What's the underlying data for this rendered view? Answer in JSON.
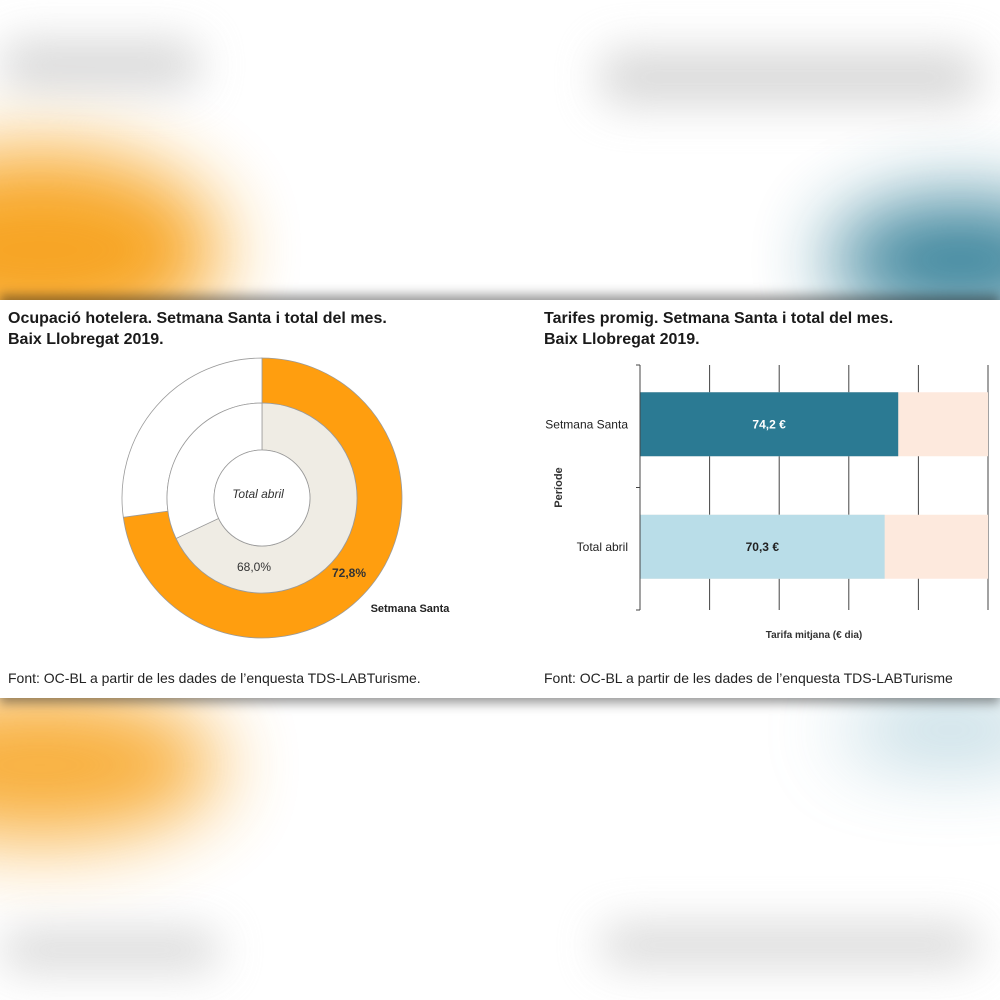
{
  "left_chart": {
    "title_line1": "Ocupació hotelera. Setmana Santa i total del mes.",
    "title_line2": "Baix Llobregat 2019.",
    "source": "Font: OC-BL a partir de les dades de l’enquesta TDS-LABTurisme."
  },
  "right_chart": {
    "title_line1": "Tarifes promig. Setmana Santa i total del mes.",
    "title_line2": "Baix Llobregat 2019.",
    "source": "Font: OC-BL a partir de les dades de l’enquesta TDS-LABTurisme"
  },
  "colors": {
    "orange": "#ff9e0f",
    "inner_fill": "#efece4",
    "teal": "#2b7a93",
    "light_blue": "#b9dde8",
    "peach": "#fde9dd"
  },
  "chart_data": [
    {
      "type": "pie",
      "variant": "nested-donut",
      "rings": [
        {
          "name": "Setmana Santa",
          "value": 72.8,
          "label": "72,8%",
          "position": "outer"
        },
        {
          "name": "Total abril",
          "value": 68.0,
          "label": "68,0%",
          "position": "inner"
        }
      ],
      "unit": "%",
      "center_label": "Total abril",
      "outer_ring_label": "Setmana Santa"
    },
    {
      "type": "bar",
      "orientation": "horizontal",
      "stacked_background": true,
      "categories": [
        "Setmana Santa",
        "Total abril"
      ],
      "values": [
        74.2,
        70.3
      ],
      "value_labels": [
        "74,2 €",
        "70,3 €"
      ],
      "xlabel": "Tarifa mitjana (€ dia)",
      "ylabel": "Període",
      "xlim": [
        0,
        100
      ],
      "grid": true
    }
  ]
}
